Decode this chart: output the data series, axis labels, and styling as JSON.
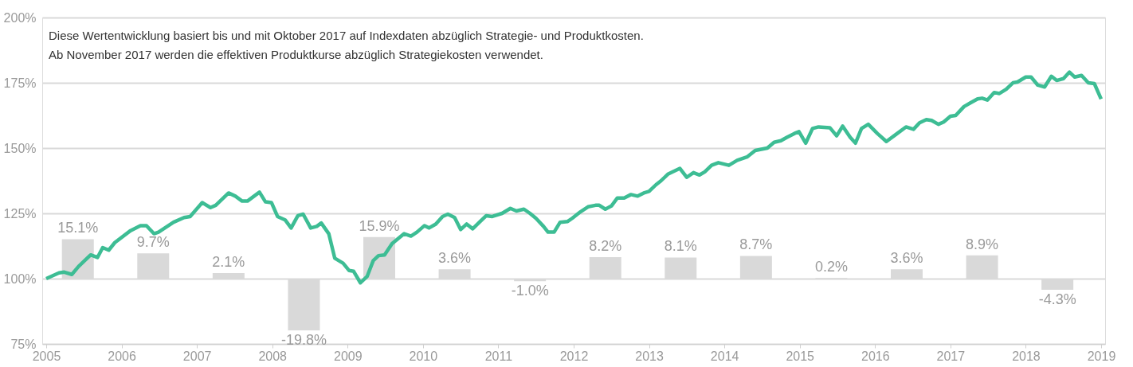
{
  "chart_data": {
    "type": "line",
    "annotations": [
      "Diese Wertentwicklung basiert bis und mit Oktober 2017 auf Indexdaten abzüglich Strategie- und Produktkosten.",
      "Ab November 2017 werden die effektiven Produktkurse abzüglich Strategiekosten verwendet."
    ],
    "xlim": [
      2005,
      2019
    ],
    "xticks": [
      2005,
      2006,
      2007,
      2008,
      2009,
      2010,
      2011,
      2012,
      2013,
      2014,
      2015,
      2016,
      2017,
      2018,
      2019
    ],
    "ylim": [
      75,
      200
    ],
    "yticks": [
      {
        "value": 75,
        "label": "75%"
      },
      {
        "value": 100,
        "label": "100%"
      },
      {
        "value": 125,
        "label": "125%"
      },
      {
        "value": 150,
        "label": "150%"
      },
      {
        "value": 175,
        "label": "175%"
      },
      {
        "value": 200,
        "label": "200%"
      }
    ],
    "grid": "y",
    "marker": "none",
    "line_style": "solid",
    "series": [
      {
        "type": "bar",
        "color": "#d9d9d9",
        "x": [
          2005.42,
          2006.42,
          2007.42,
          2008.42,
          2009.42,
          2010.42,
          2011.42,
          2012.42,
          2013.42,
          2014.42,
          2015.42,
          2016.42,
          2017.42,
          2018.42
        ],
        "base": [
          100,
          100,
          100,
          100,
          100,
          100,
          100,
          100,
          100,
          100,
          100,
          100,
          100,
          100
        ],
        "values": [
          15.1,
          9.7,
          2.1,
          -19.8,
          15.9,
          3.6,
          -1.0,
          8.2,
          8.1,
          8.7,
          0.2,
          3.6,
          8.9,
          -4.3
        ],
        "value_labels": [
          "15.1%",
          "9.7%",
          "2.1%",
          "-19.8%",
          "15.9%",
          "3.6%",
          "-1.0%",
          "8.2%",
          "8.1%",
          "8.7%",
          "0.2%",
          "3.6%",
          "8.9%",
          "-4.3%"
        ]
      },
      {
        "color": "#3dbd94",
        "x": [
          2005.0,
          2005.17,
          2005.24,
          2005.34,
          2005.43,
          2005.59,
          2005.68,
          2005.75,
          2005.83,
          2005.91,
          2006.12,
          2006.25,
          2006.33,
          2006.43,
          2006.49,
          2006.69,
          2006.83,
          2006.91,
          2007.07,
          2007.18,
          2007.25,
          2007.42,
          2007.51,
          2007.6,
          2007.67,
          2007.83,
          2007.91,
          2007.99,
          2008.07,
          2008.17,
          2008.25,
          2008.34,
          2008.41,
          2008.51,
          2008.59,
          2008.65,
          2008.75,
          2008.83,
          2008.94,
          2009.02,
          2009.08,
          2009.17,
          2009.26,
          2009.34,
          2009.41,
          2009.49,
          2009.59,
          2009.75,
          2009.84,
          2009.92,
          2010.02,
          2010.08,
          2010.17,
          2010.26,
          2010.33,
          2010.42,
          2010.5,
          2010.58,
          2010.66,
          2010.76,
          2010.84,
          2010.92,
          2011.05,
          2011.16,
          2011.24,
          2011.34,
          2011.42,
          2011.5,
          2011.6,
          2011.66,
          2011.74,
          2011.82,
          2011.92,
          2011.98,
          2012.09,
          2012.19,
          2012.29,
          2012.34,
          2012.42,
          2012.5,
          2012.58,
          2012.67,
          2012.76,
          2012.85,
          2012.93,
          2013.0,
          2013.09,
          2013.16,
          2013.25,
          2013.41,
          2013.5,
          2013.59,
          2013.67,
          2013.74,
          2013.83,
          2013.92,
          2014.06,
          2014.17,
          2014.3,
          2014.41,
          2014.57,
          2014.66,
          2014.75,
          2014.83,
          2014.93,
          2014.99,
          2015.08,
          2015.17,
          2015.25,
          2015.4,
          2015.49,
          2015.57,
          2015.67,
          2015.74,
          2015.82,
          2015.91,
          2016.03,
          2016.15,
          2016.28,
          2016.41,
          2016.51,
          2016.59,
          2016.68,
          2016.75,
          2016.84,
          2016.91,
          2017.0,
          2017.07,
          2017.18,
          2017.26,
          2017.36,
          2017.42,
          2017.49,
          2017.58,
          2017.65,
          2017.74,
          2017.83,
          2017.89,
          2018.0,
          2018.07,
          2018.16,
          2018.25,
          2018.34,
          2018.41,
          2018.5,
          2018.58,
          2018.65,
          2018.74,
          2018.83,
          2018.91,
          2019.0
        ],
        "values": [
          100.0,
          102.2,
          102.5,
          101.6,
          104.7,
          109.1,
          108.1,
          111.9,
          110.9,
          113.8,
          118.4,
          120.3,
          120.3,
          117.2,
          117.8,
          121.6,
          123.4,
          123.8,
          129.1,
          127.2,
          128.1,
          132.8,
          131.6,
          129.7,
          129.7,
          133.1,
          129.4,
          129.1,
          123.8,
          122.5,
          119.4,
          124.1,
          124.7,
          119.4,
          120.0,
          121.3,
          117.2,
          107.8,
          105.9,
          103.1,
          102.8,
          98.4,
          100.9,
          106.9,
          108.8,
          109.1,
          113.4,
          117.2,
          116.3,
          117.8,
          120.3,
          119.4,
          120.9,
          123.8,
          124.7,
          123.4,
          118.8,
          120.9,
          119.1,
          121.9,
          124.1,
          123.8,
          125.0,
          126.9,
          125.9,
          126.6,
          125.0,
          123.1,
          120.0,
          117.8,
          117.8,
          121.6,
          121.9,
          123.1,
          125.6,
          127.5,
          128.1,
          128.1,
          126.6,
          127.8,
          130.9,
          130.9,
          132.2,
          131.6,
          132.8,
          133.4,
          135.9,
          137.5,
          140.0,
          142.2,
          138.8,
          140.6,
          139.7,
          140.9,
          143.4,
          144.4,
          143.4,
          145.3,
          146.6,
          149.1,
          150.0,
          152.2,
          152.8,
          154.1,
          155.6,
          156.3,
          151.9,
          157.5,
          158.1,
          157.8,
          154.7,
          158.4,
          154.1,
          151.9,
          157.5,
          159.1,
          155.6,
          152.5,
          155.3,
          158.1,
          157.2,
          159.7,
          160.9,
          160.6,
          159.1,
          160.0,
          162.2,
          162.5,
          165.9,
          167.2,
          168.8,
          169.1,
          168.4,
          171.3,
          170.9,
          172.5,
          175.0,
          175.3,
          177.2,
          177.2,
          174.1,
          173.4,
          177.5,
          175.9,
          176.6,
          179.1,
          177.2,
          177.8,
          175.0,
          174.7,
          168.8
        ]
      }
    ]
  }
}
